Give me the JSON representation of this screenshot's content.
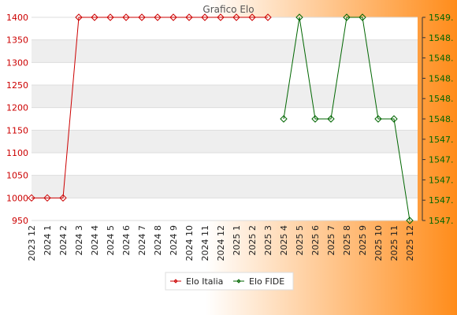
{
  "colors": {
    "bg_start": "#ffffff",
    "bg_end": "#ff8c1a",
    "italia": "#cc0000",
    "fide": "#006600",
    "band": "#eeeeee",
    "plot_bg": "#ffffff",
    "grid": "#dddddd"
  },
  "chart_data": {
    "type": "line",
    "title": "Grafico Elo",
    "categories": [
      "2023 12",
      "2024 1",
      "2024 2",
      "2024 3",
      "2024 4",
      "2024 5",
      "2024 6",
      "2024 7",
      "2024 8",
      "2024 9",
      "2024 10",
      "2024 11",
      "2024 12",
      "2025 1",
      "2025 2",
      "2025 3",
      "2025 4",
      "2025 5",
      "2025 6",
      "2025 7",
      "2025 8",
      "2025 9",
      "2025 10",
      "2025 11",
      "2025 12"
    ],
    "y_left": {
      "min": 950,
      "max": 1400,
      "ticks": [
        "950",
        "1000",
        "1050",
        "1100",
        "1150",
        "1200",
        "1250",
        "1300",
        "1350",
        "1400"
      ],
      "color": "#cc0000"
    },
    "y_right": {
      "min": 1547.0,
      "max": 1549.0,
      "ticks": [
        "1547.",
        "1547.",
        "1547.",
        "1547.",
        "1547.",
        "1548.",
        "1548.",
        "1548.",
        "1548.",
        "1548.",
        "1549."
      ],
      "color": "#006600"
    },
    "series": [
      {
        "name": "Elo Italia",
        "axis": "left",
        "color": "#cc0000",
        "values": [
          1000,
          1000,
          1000,
          1400,
          1400,
          1400,
          1400,
          1400,
          1400,
          1400,
          1400,
          1400,
          1400,
          1400,
          1400,
          1400,
          null,
          null,
          null,
          null,
          null,
          null,
          null,
          null,
          null
        ]
      },
      {
        "name": "Elo FIDE",
        "axis": "right",
        "color": "#006600",
        "values": [
          null,
          null,
          null,
          null,
          null,
          null,
          null,
          null,
          null,
          null,
          null,
          null,
          null,
          null,
          null,
          null,
          1548.0,
          1549.0,
          1548.0,
          1548.0,
          1549.0,
          1549.0,
          1548.0,
          1548.0,
          1547.0
        ]
      }
    ],
    "legend": "bottom-center",
    "grid": true
  }
}
